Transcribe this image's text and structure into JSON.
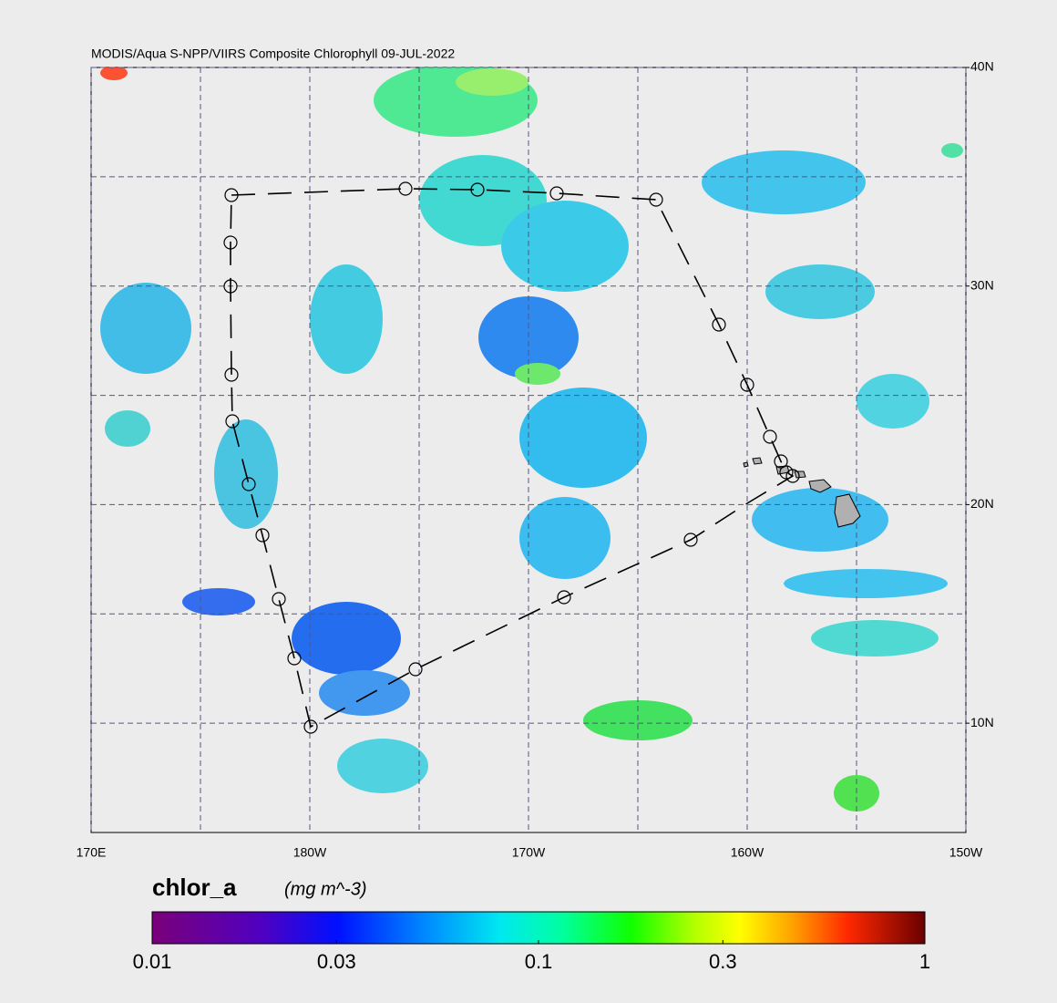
{
  "chart_data": {
    "type": "map",
    "title": "MODIS/Aqua S-NPP/VIIRS Composite Chlorophyll 09-JUL-2022",
    "xlim": [
      170,
      210
    ],
    "ylim": [
      5,
      40
    ],
    "xticks": [
      {
        "value": 170,
        "label": "170E"
      },
      {
        "value": 180,
        "label": "180W"
      },
      {
        "value": 190,
        "label": "170W"
      },
      {
        "value": 200,
        "label": "160W"
      },
      {
        "value": 210,
        "label": "150W"
      }
    ],
    "yticks": [
      {
        "value": 40,
        "label": "40N"
      },
      {
        "value": 30,
        "label": "30N"
      },
      {
        "value": 20,
        "label": "20N"
      },
      {
        "value": 10,
        "label": "10N"
      }
    ],
    "grid": true,
    "colorbar": {
      "label": "chlor_a",
      "units": "(mg m^-3)",
      "lim": [
        0.01,
        1
      ],
      "ticks": [
        0.01,
        0.03,
        0.1,
        0.3,
        1
      ],
      "log": true
    }
  }
}
